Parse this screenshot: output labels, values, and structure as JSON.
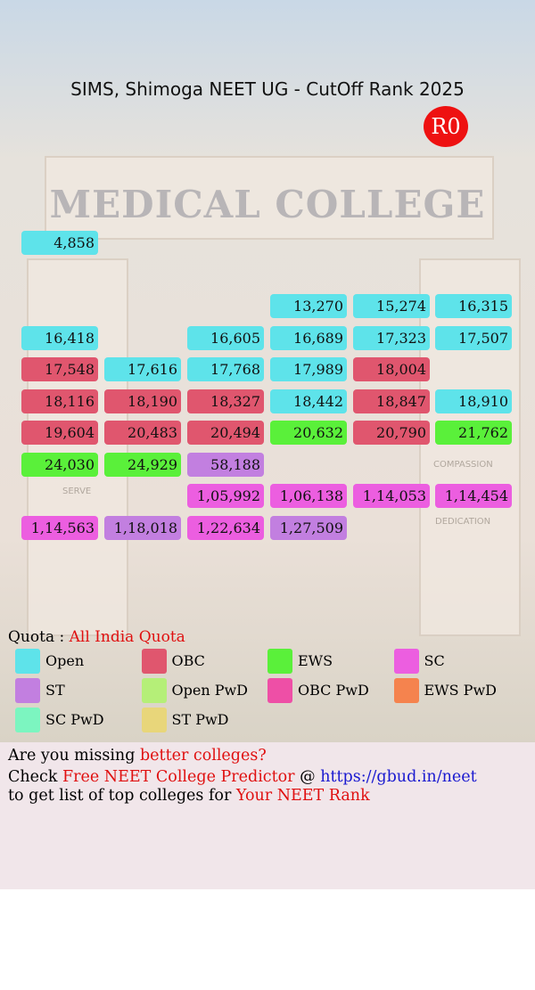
{
  "header": {
    "title": "SIMS, Shimoga NEET UG - CutOff Rank 2025",
    "badge": "R0"
  },
  "background": {
    "heading": "MEDICAL COLLEGE",
    "words": [
      "COMPASSION",
      "SERVE",
      "DEDICATION"
    ]
  },
  "table": {
    "rows": [
      [
        {
          "text": "4,858",
          "color": "#5ee3ea"
        },
        null,
        null,
        null,
        null,
        null
      ],
      [
        null,
        null,
        null,
        null,
        null,
        null
      ],
      [
        null,
        null,
        null,
        {
          "text": "13,270",
          "color": "#5ee3ea"
        },
        {
          "text": "15,274",
          "color": "#5ee3ea"
        },
        {
          "text": "16,315",
          "color": "#5ee3ea"
        }
      ],
      [
        {
          "text": "16,418",
          "color": "#5ee3ea"
        },
        null,
        {
          "text": "16,605",
          "color": "#5ee3ea"
        },
        {
          "text": "16,689",
          "color": "#5ee3ea"
        },
        {
          "text": "17,323",
          "color": "#5ee3ea"
        },
        {
          "text": "17,507",
          "color": "#5ee3ea"
        }
      ],
      [
        {
          "text": "17,548",
          "color": "#e0566e"
        },
        {
          "text": "17,616",
          "color": "#5ee3ea"
        },
        {
          "text": "17,768",
          "color": "#5ee3ea"
        },
        {
          "text": "17,989",
          "color": "#5ee3ea"
        },
        {
          "text": "18,004",
          "color": "#e0566e"
        },
        null
      ],
      [
        {
          "text": "18,116",
          "color": "#e0566e"
        },
        {
          "text": "18,190",
          "color": "#e0566e"
        },
        {
          "text": "18,327",
          "color": "#e0566e"
        },
        {
          "text": "18,442",
          "color": "#5ee3ea"
        },
        {
          "text": "18,847",
          "color": "#e0566e"
        },
        {
          "text": "18,910",
          "color": "#5ee3ea"
        }
      ],
      [
        {
          "text": "19,604",
          "color": "#e0566e"
        },
        {
          "text": "20,483",
          "color": "#e0566e"
        },
        {
          "text": "20,494",
          "color": "#e0566e"
        },
        {
          "text": "20,632",
          "color": "#5af03a"
        },
        {
          "text": "20,790",
          "color": "#e0566e"
        },
        {
          "text": "21,762",
          "color": "#5af03a"
        }
      ],
      [
        {
          "text": "24,030",
          "color": "#5af03a"
        },
        {
          "text": "24,929",
          "color": "#5af03a"
        },
        {
          "text": "58,188",
          "color": "#c27fe0"
        },
        null,
        null,
        null
      ],
      [
        null,
        null,
        {
          "text": "1,05,992",
          "color": "#ec5ee0"
        },
        {
          "text": "1,06,138",
          "color": "#ec5ee0"
        },
        {
          "text": "1,14,053",
          "color": "#ec5ee0"
        },
        {
          "text": "1,14,454",
          "color": "#ec5ee0"
        }
      ],
      [
        {
          "text": "1,14,563",
          "color": "#ec5ee0"
        },
        {
          "text": "1,18,018",
          "color": "#c27fe0"
        },
        {
          "text": "1,22,634",
          "color": "#ec5ee0"
        },
        {
          "text": "1,27,509",
          "color": "#c27fe0"
        },
        null,
        null
      ]
    ]
  },
  "quota": {
    "label": "Quota :",
    "value": "All India Quota"
  },
  "legend": [
    {
      "name": "Open",
      "color": "#5ee3ea"
    },
    {
      "name": "OBC",
      "color": "#e0566e"
    },
    {
      "name": "EWS",
      "color": "#5af03a"
    },
    {
      "name": "SC",
      "color": "#ec5ee0"
    },
    {
      "name": "ST",
      "color": "#c27fe0"
    },
    {
      "name": "Open PwD",
      "color": "#b5ef78"
    },
    {
      "name": "OBC PwD",
      "color": "#ee4fa6"
    },
    {
      "name": "EWS PwD",
      "color": "#f5834e"
    },
    {
      "name": "SC PwD",
      "color": "#7cf5c0"
    },
    {
      "name": "ST PwD",
      "color": "#e8d67a"
    }
  ],
  "footer": {
    "line1": [
      "Are you missing",
      "better colleges?"
    ],
    "line2": [
      "Check",
      "Free NEET College Predictor",
      "@",
      "https://gbud.in/neet"
    ],
    "line3": [
      "to get list of top colleges for",
      "Your NEET Rank"
    ]
  }
}
